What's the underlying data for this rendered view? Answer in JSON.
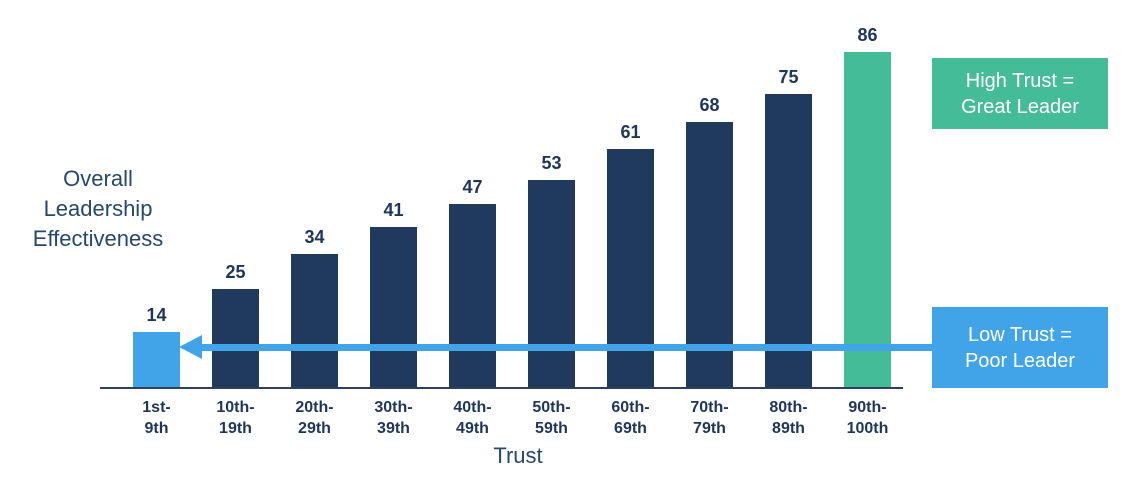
{
  "colors": {
    "navy_bar": "#1f3a5c",
    "accent_blue": "#42a4e8",
    "accent_green": "#45bc98",
    "value_label_navy": "#1f355a",
    "axis_title_navy": "#27486d",
    "axis_line": "#30405c"
  },
  "y_axis_title": "Overall\nLeadership\nEffectiveness",
  "x_axis_title": "Trust",
  "callouts": {
    "high": {
      "text": "High Trust =\nGreat Leader",
      "color": "#45bc98"
    },
    "low": {
      "text": "Low Trust =\nPoor Leader",
      "color": "#42a4e8"
    }
  },
  "chart_data": {
    "type": "bar",
    "title": "",
    "xlabel": "Trust",
    "ylabel": "Overall Leadership Effectiveness",
    "categories": [
      "1st-9th",
      "10th-19th",
      "20th-29th",
      "30th-39th",
      "40th-49th",
      "50th-59th",
      "60th-69th",
      "70th-79th",
      "80th-89th",
      "90th-100th"
    ],
    "tick_lines": [
      [
        "1st-",
        "9th"
      ],
      [
        "10th-",
        "19th"
      ],
      [
        "20th-",
        "29th"
      ],
      [
        "30th-",
        "39th"
      ],
      [
        "40th-",
        "49th"
      ],
      [
        "50th-",
        "59th"
      ],
      [
        "60th-",
        "69th"
      ],
      [
        "70th-",
        "79th"
      ],
      [
        "80th-",
        "89th"
      ],
      [
        "90th-",
        "100th"
      ]
    ],
    "values": [
      14,
      25,
      34,
      41,
      47,
      53,
      61,
      68,
      75,
      86
    ],
    "bar_colors": [
      "#42a4e8",
      "#1f3a5c",
      "#1f3a5c",
      "#1f3a5c",
      "#1f3a5c",
      "#1f3a5c",
      "#1f3a5c",
      "#1f3a5c",
      "#1f3a5c",
      "#45bc98"
    ],
    "data_labels_shown": true,
    "ylim": [
      0,
      100
    ],
    "y_axis_ticks_shown": false,
    "grid": false,
    "legend": null,
    "annotations": [
      {
        "text": "High Trust =\nGreat Leader",
        "style": "green-box",
        "near_category": "90th-100th"
      },
      {
        "text": "Low Trust =\nPoor Leader",
        "style": "blue-box",
        "arrow_points_to_category": "1st-9th"
      }
    ]
  }
}
